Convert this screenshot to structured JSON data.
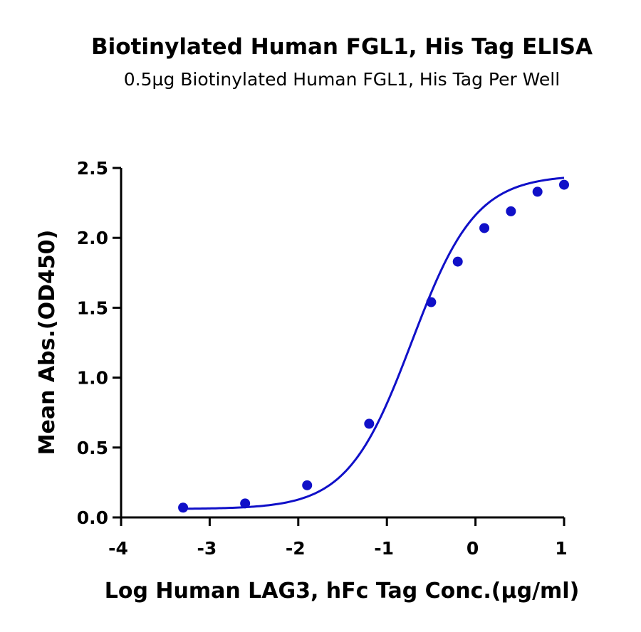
{
  "chart_data": {
    "type": "scatter",
    "title": "Biotinylated Human FGL1, His Tag ELISA",
    "subtitle": "0.5µg Biotinylated Human FGL1, His Tag Per Well",
    "xlabel": "Log Human LAG3, hFc Tag Conc.(µg/ml)",
    "ylabel": "Mean Abs.(OD450)",
    "xlim": [
      -4,
      1
    ],
    "ylim": [
      0,
      2.5
    ],
    "xticks": [
      "-4",
      "-3",
      "-2",
      "-1",
      "0",
      "1"
    ],
    "yticks": [
      "0.0",
      "0.5",
      "1.0",
      "1.5",
      "2.0",
      "2.5"
    ],
    "grid": false,
    "series": [
      {
        "color": "#1010c8",
        "x": [
          -3.3,
          -2.6,
          -1.9,
          -1.2,
          -0.5,
          -0.2,
          0.1,
          0.4,
          0.7,
          1.0
        ],
        "y": [
          0.07,
          0.1,
          0.23,
          0.67,
          1.54,
          1.83,
          2.07,
          2.19,
          2.33,
          2.38
        ],
        "fit": {
          "model": "4PL",
          "bottom": 0.06,
          "top": 2.45,
          "logEC50": -0.72,
          "hill": 1.2
        }
      }
    ]
  }
}
